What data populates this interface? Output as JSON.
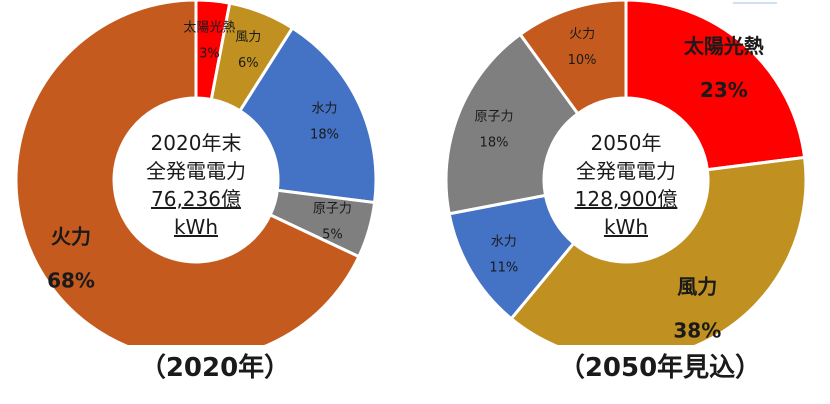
{
  "chart_data": [
    {
      "type": "pie",
      "donut": true,
      "caption": "（2020年）",
      "center_lines": [
        "2020年末",
        "全発電電力",
        "76,236億",
        "kWh"
      ],
      "slices": [
        {
          "label": "太陽光熱",
          "value_label": "3%",
          "value": 3,
          "color": "#ff0000",
          "emphasis": false
        },
        {
          "label": "風力",
          "value_label": "6%",
          "value": 6,
          "color": "#c09020",
          "emphasis": false
        },
        {
          "label": "水力",
          "value_label": "18%",
          "value": 18,
          "color": "#4472c4",
          "emphasis": false
        },
        {
          "label": "原子力",
          "value_label": "5%",
          "value": 5,
          "color": "#7f7f7f",
          "emphasis": false
        },
        {
          "label": "火力",
          "value_label": "68%",
          "value": 68,
          "color": "#c55a1e",
          "emphasis": true
        }
      ]
    },
    {
      "type": "pie",
      "donut": true,
      "caption": "（2050年見込）",
      "center_lines": [
        "2050年",
        "全発電電力",
        "128,900億",
        "kWh"
      ],
      "slices": [
        {
          "label": "太陽光熱",
          "value_label": "23%",
          "value": 23,
          "color": "#ff0000",
          "emphasis": true
        },
        {
          "label": "風力",
          "value_label": "38%",
          "value": 38,
          "color": "#c09020",
          "emphasis": true
        },
        {
          "label": "水力",
          "value_label": "11%",
          "value": 11,
          "color": "#4472c4",
          "emphasis": false
        },
        {
          "label": "原子力",
          "value_label": "18%",
          "value": 18,
          "color": "#7f7f7f",
          "emphasis": false
        },
        {
          "label": "火力",
          "value_label": "10%",
          "value": 10,
          "color": "#c55a1e",
          "emphasis": false
        }
      ]
    }
  ]
}
